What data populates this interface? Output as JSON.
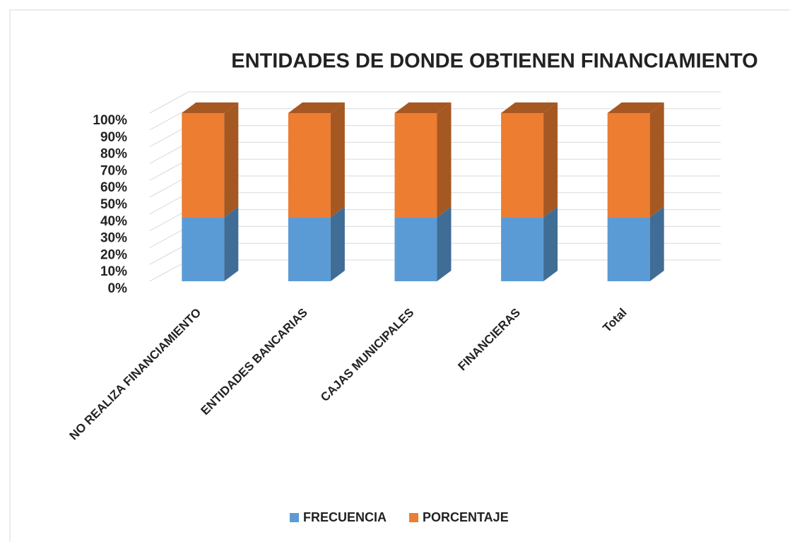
{
  "chart_data": {
    "type": "bar3d_stacked_percent",
    "title": "ENTIDADES DE DONDE OBTIENEN FINANCIAMIENTO",
    "categories": [
      "NO REALIZA FINANCIAMIENTO",
      "ENTIDADES BANCARIAS",
      "CAJAS MUNICIPALES",
      "FINANCIERAS",
      "Total"
    ],
    "series": [
      {
        "name": "FRECUENCIA",
        "color": "#5b9bd5",
        "values": [
          38,
          38,
          38,
          38,
          38
        ]
      },
      {
        "name": "PORCENTAJE",
        "color": "#ed7d31",
        "values": [
          62,
          62,
          62,
          62,
          62
        ]
      }
    ],
    "ylim": [
      0,
      100
    ],
    "yticks": [
      {
        "value": 0,
        "label": "0%"
      },
      {
        "value": 10,
        "label": "10%"
      },
      {
        "value": 20,
        "label": "20%"
      },
      {
        "value": 30,
        "label": "30%"
      },
      {
        "value": 40,
        "label": "40%"
      },
      {
        "value": 50,
        "label": "50%"
      },
      {
        "value": 60,
        "label": "60%"
      },
      {
        "value": 70,
        "label": "70%"
      },
      {
        "value": 80,
        "label": "80%"
      },
      {
        "value": 90,
        "label": "90%"
      },
      {
        "value": 100,
        "label": "100%"
      }
    ],
    "grid": true,
    "legend": "bottom"
  }
}
